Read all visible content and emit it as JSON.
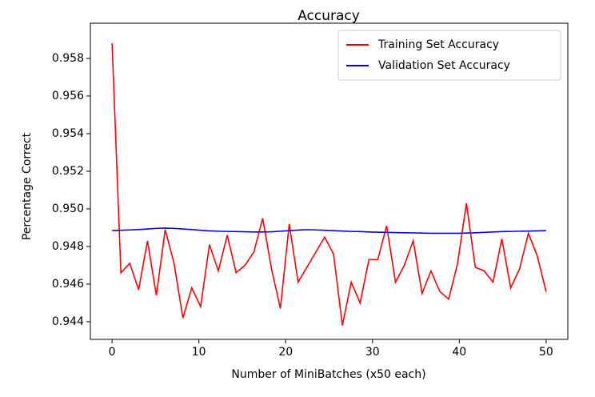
{
  "chart_data": {
    "type": "line",
    "title": "Accuracy",
    "x_label": "Number of MiniBatches (x50 each)",
    "y_label": "Percentage Correct",
    "x": [
      0,
      1.02,
      2.04,
      3.06,
      4.08,
      5.1,
      6.12,
      7.14,
      8.16,
      9.18,
      10.2,
      11.22,
      12.24,
      13.27,
      14.29,
      15.31,
      16.33,
      17.35,
      18.37,
      19.39,
      20.41,
      21.43,
      22.45,
      23.47,
      24.49,
      25.51,
      26.53,
      27.55,
      28.57,
      29.59,
      30.61,
      31.63,
      32.65,
      33.67,
      34.69,
      35.71,
      36.73,
      37.76,
      38.78,
      39.8,
      40.82,
      41.84,
      42.86,
      43.88,
      44.9,
      45.92,
      46.94,
      47.96,
      48.98,
      50
    ],
    "series": [
      {
        "name": "Training Set Accuracy",
        "color": "#ff0000",
        "values": [
          0.9588,
          0.9466,
          0.9471,
          0.9457,
          0.9483,
          0.9454,
          0.9489,
          0.9471,
          0.9442,
          0.9458,
          0.9448,
          0.9481,
          0.9467,
          0.9486,
          0.9466,
          0.947,
          0.9477,
          0.9495,
          0.9468,
          0.9447,
          0.9492,
          0.9461,
          0.9469,
          0.9477,
          0.9485,
          0.9476,
          0.9438,
          0.9461,
          0.945,
          0.9473,
          0.9473,
          0.9491,
          0.9461,
          0.947,
          0.9483,
          0.9455,
          0.9467,
          0.9456,
          0.9452,
          0.9471,
          0.9503,
          0.9469,
          0.9467,
          0.9461,
          0.9484,
          0.9458,
          0.9468,
          0.9487,
          0.9475,
          0.9456
        ]
      },
      {
        "name": "Validation Set Accuracy",
        "color": "#0000ff",
        "values": [
          0.94885,
          0.94886,
          0.94888,
          0.9489,
          0.94893,
          0.94896,
          0.94898,
          0.94896,
          0.94893,
          0.9489,
          0.94886,
          0.94883,
          0.94881,
          0.9488,
          0.94879,
          0.94878,
          0.94877,
          0.94877,
          0.94878,
          0.94881,
          0.94884,
          0.94887,
          0.94889,
          0.94888,
          0.94886,
          0.94884,
          0.94882,
          0.9488,
          0.94879,
          0.94877,
          0.94876,
          0.94875,
          0.94874,
          0.94873,
          0.94872,
          0.94871,
          0.9487,
          0.9487,
          0.9487,
          0.9487,
          0.94871,
          0.94873,
          0.94875,
          0.94877,
          0.94879,
          0.9488,
          0.94881,
          0.94882,
          0.94883,
          0.94884
        ]
      }
    ],
    "xlim": [
      -2.5,
      52.5
    ],
    "xticks": [
      0,
      10,
      20,
      30,
      40,
      50
    ],
    "ylim": [
      0.94306,
      0.95987
    ],
    "yticks": [
      0.944,
      0.946,
      0.948,
      {
        "value": 0.95,
        "label": "0.950"
      },
      0.952,
      0.954,
      0.956,
      0.958
    ],
    "legend": "upper right",
    "grid": false
  }
}
